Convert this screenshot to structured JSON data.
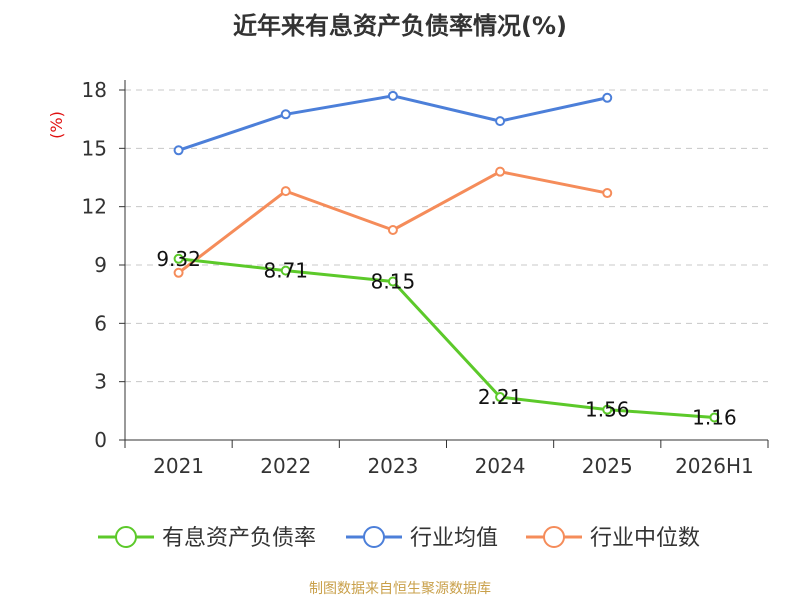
{
  "title": "近年来有息资产负债率情况(%)",
  "source_note": "制图数据来自恒生聚源数据库",
  "chart_data": {
    "type": "line",
    "title": "近年来有息资产负债率情况(%)",
    "ylabel": "(%)",
    "xlabel": "",
    "categories": [
      "2021",
      "2022",
      "2023",
      "2024",
      "2025",
      "2026H1"
    ],
    "ylim": [
      0,
      18
    ],
    "yticks": [
      0,
      3,
      6,
      9,
      12,
      15,
      18
    ],
    "grid": true,
    "legend_position": "bottom",
    "series": [
      {
        "name": "有息资产负债率",
        "color": "#5cc92a",
        "values": [
          9.32,
          8.71,
          8.15,
          2.21,
          1.56,
          1.16
        ],
        "data_labels": [
          "9.32",
          "8.71",
          "8.15",
          "2.21",
          "1.56",
          "1.16"
        ]
      },
      {
        "name": "行业均值",
        "color": "#4c7fd9",
        "values": [
          14.9,
          16.75,
          17.7,
          16.4,
          17.6,
          null
        ]
      },
      {
        "name": "行业中位数",
        "color": "#f58c5a",
        "values": [
          8.6,
          12.8,
          10.8,
          13.8,
          12.7,
          null
        ]
      }
    ]
  }
}
